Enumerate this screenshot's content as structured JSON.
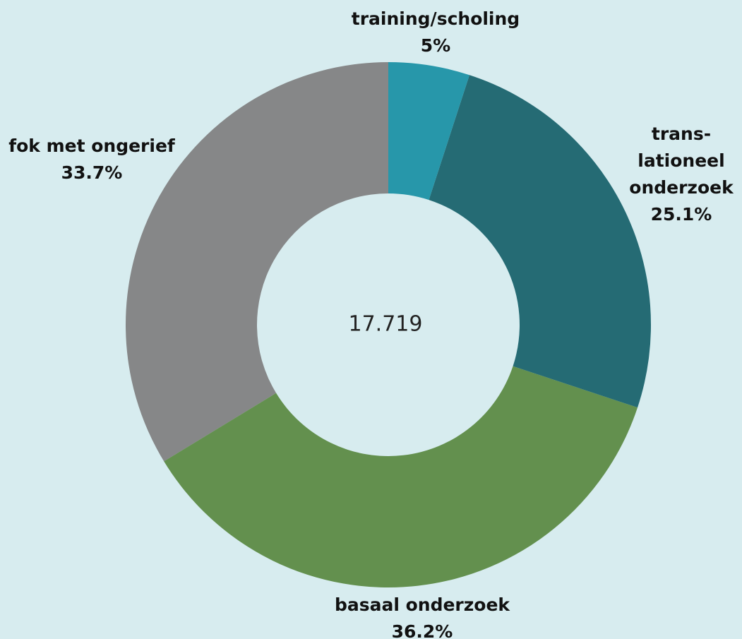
{
  "chart_data": {
    "type": "donut",
    "categories": [
      "training/scholing",
      "trans-\nlationeel\nonderzoek",
      "basaal onderzoek",
      "fok met ongerief"
    ],
    "values": [
      5,
      25.1,
      36.2,
      33.7
    ],
    "value_labels": [
      "5%",
      "25.1%",
      "36.2%",
      "33.7%"
    ],
    "colors": [
      "#2797aa",
      "#256b74",
      "#63904e",
      "#868788"
    ],
    "center_label": "17.719"
  }
}
